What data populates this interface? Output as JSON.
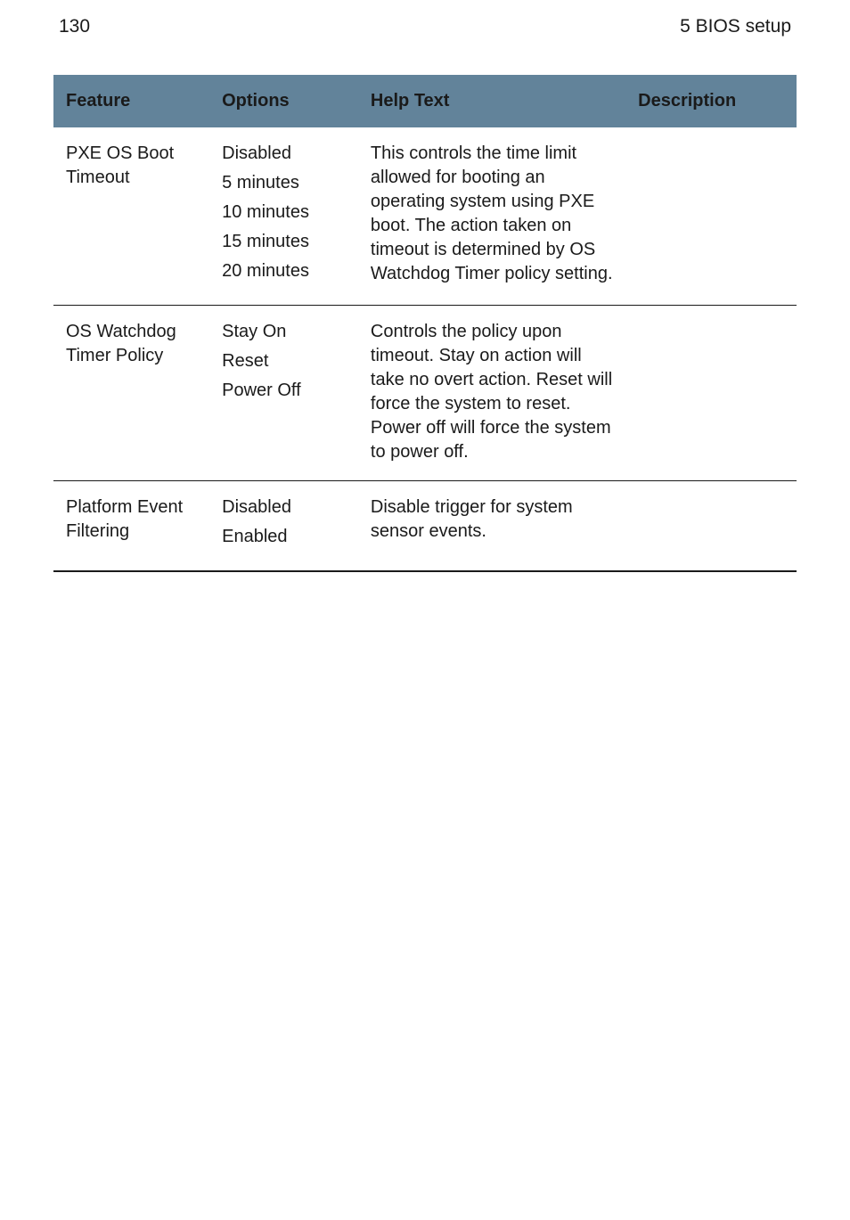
{
  "page_header": {
    "page_number": "130",
    "section_title": "5 BIOS setup"
  },
  "colors": {
    "header_background": "#62839a",
    "row_divider": "#1a1a1a",
    "text": "#1a1a1a",
    "page_background": "#ffffff"
  },
  "typography": {
    "body_fontsize_pt": 15,
    "header_fontsize_pt": 15,
    "running_head_fontsize_pt": 16,
    "font_family": "Segoe UI / Helvetica Neue / Arial"
  },
  "table": {
    "columns": [
      {
        "key": "feature",
        "label": "Feature",
        "width_pct": 21
      },
      {
        "key": "options",
        "label": "Options",
        "width_pct": 20
      },
      {
        "key": "help_text",
        "label": "Help Text",
        "width_pct": 36
      },
      {
        "key": "description",
        "label": "Description",
        "width_pct": 23
      }
    ],
    "rows": [
      {
        "feature": "PXE OS Boot Timeout",
        "options": [
          "Disabled",
          "5 minutes",
          "10 minutes",
          "15 minutes",
          "20 minutes"
        ],
        "help_text": "This controls the time limit allowed for booting an operating system using PXE boot. The action taken on timeout is deter­mined by OS Watchdog Timer policy setting.",
        "description": ""
      },
      {
        "feature": "OS Watch­dog Timer Policy",
        "options": [
          "Stay On",
          "Reset",
          "Power Off"
        ],
        "help_text": "Controls the policy upon timeout. Stay on action will take no overt action. Reset will force the system to reset. Power off will force the system to power off.",
        "description": ""
      },
      {
        "feature": "Platform Event Filter­ing",
        "options": [
          "Disabled",
          "Enabled"
        ],
        "help_text": "Disable trigger for system sensor events.",
        "description": ""
      }
    ]
  }
}
